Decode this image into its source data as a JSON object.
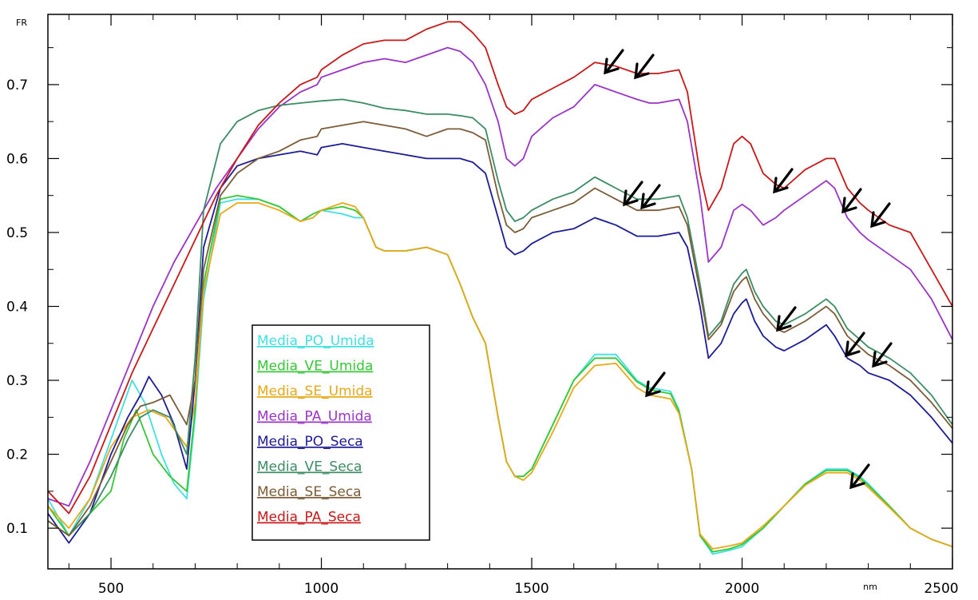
{
  "chart_data": {
    "type": "line",
    "title": "",
    "xlabel": "nm",
    "ylabel": "FR",
    "xlim": [
      350,
      2500
    ],
    "ylim": [
      0.045,
      0.795
    ],
    "xticks": [
      500,
      1000,
      1500,
      2000,
      2500
    ],
    "yticks": [
      0.1,
      0.2,
      0.3,
      0.4,
      0.5,
      0.6,
      0.7
    ],
    "grid": false,
    "legend_position": "lower-left inside plot",
    "series": [
      {
        "name": "Media_PO_Umida",
        "color": "#40e0e0",
        "x": [
          350,
          400,
          450,
          500,
          550,
          580,
          620,
          650,
          680,
          700,
          720,
          760,
          800,
          850,
          900,
          950,
          980,
          1000,
          1050,
          1080,
          1100,
          1130,
          1150,
          1200,
          1250,
          1300,
          1330,
          1360,
          1390,
          1420,
          1440,
          1460,
          1480,
          1500,
          1550,
          1600,
          1650,
          1700,
          1750,
          1780,
          1800,
          1830,
          1850,
          1880,
          1900,
          1930,
          1970,
          2000,
          2050,
          2100,
          2150,
          2200,
          2250,
          2280,
          2300,
          2350,
          2400,
          2450,
          2500
        ],
        "y": [
          0.14,
          0.09,
          0.14,
          0.22,
          0.3,
          0.27,
          0.2,
          0.16,
          0.14,
          0.25,
          0.41,
          0.54,
          0.545,
          0.545,
          0.535,
          0.515,
          0.52,
          0.53,
          0.525,
          0.52,
          0.52,
          0.48,
          0.475,
          0.475,
          0.48,
          0.47,
          0.43,
          0.385,
          0.35,
          0.25,
          0.19,
          0.17,
          0.17,
          0.18,
          0.24,
          0.3,
          0.335,
          0.335,
          0.3,
          0.29,
          0.288,
          0.285,
          0.26,
          0.18,
          0.09,
          0.065,
          0.07,
          0.075,
          0.1,
          0.13,
          0.16,
          0.18,
          0.18,
          0.17,
          0.16,
          0.13,
          0.1,
          0.085,
          0.075
        ]
      },
      {
        "name": "Media_VE_Umida",
        "color": "#34c834",
        "x": [
          350,
          400,
          450,
          500,
          530,
          560,
          600,
          640,
          680,
          700,
          720,
          760,
          800,
          850,
          900,
          950,
          980,
          1000,
          1050,
          1080,
          1100,
          1130,
          1150,
          1200,
          1250,
          1300,
          1330,
          1360,
          1390,
          1420,
          1440,
          1460,
          1480,
          1500,
          1550,
          1600,
          1650,
          1700,
          1750,
          1780,
          1800,
          1830,
          1850,
          1880,
          1900,
          1930,
          1970,
          2000,
          2050,
          2100,
          2150,
          2200,
          2250,
          2280,
          2300,
          2350,
          2400,
          2450,
          2500
        ],
        "y": [
          0.13,
          0.09,
          0.12,
          0.15,
          0.22,
          0.26,
          0.2,
          0.17,
          0.15,
          0.26,
          0.43,
          0.545,
          0.55,
          0.545,
          0.535,
          0.515,
          0.525,
          0.53,
          0.535,
          0.53,
          0.52,
          0.48,
          0.475,
          0.475,
          0.48,
          0.47,
          0.43,
          0.385,
          0.35,
          0.25,
          0.19,
          0.17,
          0.17,
          0.18,
          0.24,
          0.3,
          0.33,
          0.33,
          0.298,
          0.288,
          0.285,
          0.282,
          0.258,
          0.18,
          0.09,
          0.068,
          0.072,
          0.078,
          0.1,
          0.13,
          0.16,
          0.178,
          0.178,
          0.168,
          0.158,
          0.13,
          0.1,
          0.085,
          0.075
        ]
      },
      {
        "name": "Media_SE_Umida",
        "color": "#e8a818",
        "x": [
          350,
          400,
          450,
          500,
          550,
          590,
          630,
          680,
          700,
          720,
          760,
          800,
          850,
          900,
          950,
          980,
          1000,
          1050,
          1080,
          1100,
          1130,
          1150,
          1200,
          1250,
          1300,
          1330,
          1360,
          1390,
          1420,
          1440,
          1460,
          1480,
          1500,
          1550,
          1600,
          1650,
          1700,
          1750,
          1780,
          1800,
          1830,
          1850,
          1880,
          1900,
          1930,
          1970,
          2000,
          2050,
          2100,
          2150,
          2200,
          2250,
          2280,
          2300,
          2350,
          2400,
          2450,
          2500
        ],
        "y": [
          0.13,
          0.1,
          0.14,
          0.21,
          0.25,
          0.26,
          0.25,
          0.21,
          0.27,
          0.42,
          0.525,
          0.54,
          0.54,
          0.53,
          0.515,
          0.52,
          0.53,
          0.54,
          0.535,
          0.52,
          0.48,
          0.475,
          0.475,
          0.48,
          0.47,
          0.43,
          0.385,
          0.35,
          0.25,
          0.19,
          0.17,
          0.165,
          0.175,
          0.23,
          0.29,
          0.32,
          0.323,
          0.29,
          0.28,
          0.278,
          0.275,
          0.255,
          0.18,
          0.092,
          0.072,
          0.076,
          0.08,
          0.103,
          0.13,
          0.158,
          0.175,
          0.175,
          0.165,
          0.155,
          0.128,
          0.1,
          0.085,
          0.075
        ]
      },
      {
        "name": "Media_PA_Umida",
        "color": "#9a34c8",
        "x": [
          350,
          400,
          450,
          500,
          550,
          600,
          650,
          700,
          750,
          800,
          850,
          900,
          950,
          990,
          1000,
          1050,
          1100,
          1150,
          1200,
          1250,
          1300,
          1330,
          1360,
          1390,
          1420,
          1440,
          1460,
          1480,
          1500,
          1550,
          1600,
          1650,
          1700,
          1750,
          1780,
          1800,
          1850,
          1870,
          1900,
          1920,
          1950,
          1980,
          2000,
          2020,
          2050,
          2080,
          2100,
          2150,
          2200,
          2220,
          2250,
          2280,
          2300,
          2350,
          2400,
          2450,
          2500
        ],
        "y": [
          0.14,
          0.13,
          0.19,
          0.26,
          0.33,
          0.4,
          0.46,
          0.51,
          0.56,
          0.6,
          0.64,
          0.67,
          0.69,
          0.7,
          0.71,
          0.72,
          0.73,
          0.735,
          0.73,
          0.74,
          0.75,
          0.745,
          0.73,
          0.7,
          0.65,
          0.6,
          0.59,
          0.6,
          0.63,
          0.655,
          0.67,
          0.7,
          0.69,
          0.68,
          0.675,
          0.675,
          0.68,
          0.65,
          0.55,
          0.46,
          0.48,
          0.53,
          0.538,
          0.53,
          0.51,
          0.52,
          0.53,
          0.55,
          0.57,
          0.56,
          0.52,
          0.5,
          0.49,
          0.47,
          0.45,
          0.41,
          0.355
        ]
      },
      {
        "name": "Media_PO_Seca",
        "color": "#1c1c96",
        "x": [
          350,
          400,
          450,
          500,
          540,
          570,
          590,
          620,
          650,
          680,
          700,
          720,
          760,
          800,
          850,
          900,
          950,
          990,
          1000,
          1050,
          1100,
          1150,
          1200,
          1250,
          1300,
          1330,
          1360,
          1390,
          1420,
          1440,
          1460,
          1480,
          1500,
          1550,
          1600,
          1650,
          1700,
          1750,
          1780,
          1800,
          1850,
          1870,
          1900,
          1920,
          1950,
          1980,
          2000,
          2010,
          2030,
          2050,
          2080,
          2100,
          2150,
          2200,
          2220,
          2250,
          2280,
          2300,
          2350,
          2400,
          2450,
          2500
        ],
        "y": [
          0.12,
          0.08,
          0.12,
          0.2,
          0.25,
          0.28,
          0.305,
          0.28,
          0.24,
          0.18,
          0.3,
          0.48,
          0.56,
          0.59,
          0.6,
          0.605,
          0.61,
          0.605,
          0.615,
          0.62,
          0.615,
          0.61,
          0.605,
          0.6,
          0.6,
          0.6,
          0.595,
          0.58,
          0.52,
          0.48,
          0.47,
          0.475,
          0.485,
          0.5,
          0.505,
          0.52,
          0.51,
          0.495,
          0.495,
          0.495,
          0.5,
          0.48,
          0.4,
          0.33,
          0.35,
          0.39,
          0.405,
          0.41,
          0.38,
          0.36,
          0.345,
          0.34,
          0.355,
          0.375,
          0.36,
          0.33,
          0.32,
          0.31,
          0.3,
          0.28,
          0.25,
          0.215
        ]
      },
      {
        "name": "Media_VE_Seca",
        "color": "#3c8c64",
        "x": [
          350,
          400,
          450,
          500,
          540,
          570,
          600,
          640,
          680,
          700,
          720,
          760,
          800,
          850,
          900,
          950,
          1000,
          1050,
          1100,
          1150,
          1200,
          1250,
          1300,
          1330,
          1360,
          1390,
          1420,
          1440,
          1460,
          1480,
          1500,
          1550,
          1600,
          1650,
          1700,
          1750,
          1780,
          1800,
          1850,
          1870,
          1900,
          1920,
          1950,
          1980,
          2000,
          2010,
          2030,
          2050,
          2080,
          2100,
          2150,
          2200,
          2220,
          2250,
          2280,
          2300,
          2350,
          2400,
          2450,
          2500
        ],
        "y": [
          0.11,
          0.09,
          0.12,
          0.17,
          0.22,
          0.25,
          0.26,
          0.25,
          0.2,
          0.33,
          0.53,
          0.62,
          0.65,
          0.665,
          0.672,
          0.675,
          0.678,
          0.68,
          0.675,
          0.668,
          0.665,
          0.66,
          0.66,
          0.658,
          0.655,
          0.64,
          0.57,
          0.53,
          0.515,
          0.52,
          0.53,
          0.545,
          0.555,
          0.575,
          0.56,
          0.545,
          0.545,
          0.545,
          0.55,
          0.52,
          0.43,
          0.36,
          0.38,
          0.43,
          0.445,
          0.45,
          0.42,
          0.4,
          0.38,
          0.375,
          0.39,
          0.41,
          0.4,
          0.37,
          0.355,
          0.345,
          0.33,
          0.31,
          0.28,
          0.24
        ]
      },
      {
        "name": "Media_SE_Seca",
        "color": "#7c5c38",
        "x": [
          350,
          400,
          450,
          500,
          540,
          570,
          600,
          640,
          680,
          700,
          720,
          760,
          800,
          850,
          900,
          950,
          990,
          1000,
          1050,
          1100,
          1150,
          1200,
          1250,
          1300,
          1330,
          1360,
          1390,
          1420,
          1440,
          1460,
          1480,
          1500,
          1550,
          1600,
          1650,
          1700,
          1750,
          1780,
          1800,
          1850,
          1870,
          1900,
          1920,
          1950,
          1980,
          2000,
          2010,
          2030,
          2050,
          2080,
          2100,
          2150,
          2200,
          2220,
          2250,
          2280,
          2300,
          2350,
          2400,
          2450,
          2500
        ],
        "y": [
          0.11,
          0.09,
          0.13,
          0.19,
          0.24,
          0.265,
          0.27,
          0.28,
          0.24,
          0.3,
          0.45,
          0.55,
          0.58,
          0.6,
          0.61,
          0.625,
          0.63,
          0.64,
          0.645,
          0.65,
          0.645,
          0.64,
          0.63,
          0.64,
          0.64,
          0.635,
          0.625,
          0.55,
          0.51,
          0.5,
          0.505,
          0.52,
          0.53,
          0.54,
          0.56,
          0.545,
          0.53,
          0.53,
          0.53,
          0.535,
          0.51,
          0.42,
          0.355,
          0.375,
          0.42,
          0.435,
          0.44,
          0.41,
          0.39,
          0.37,
          0.365,
          0.38,
          0.4,
          0.39,
          0.36,
          0.345,
          0.335,
          0.32,
          0.3,
          0.27,
          0.235
        ]
      },
      {
        "name": "Media_PA_Seca",
        "color": "#c81818",
        "x": [
          350,
          400,
          450,
          500,
          550,
          600,
          650,
          700,
          750,
          800,
          850,
          900,
          950,
          990,
          1000,
          1050,
          1100,
          1150,
          1200,
          1250,
          1300,
          1330,
          1360,
          1390,
          1420,
          1440,
          1460,
          1480,
          1500,
          1550,
          1600,
          1650,
          1700,
          1750,
          1780,
          1800,
          1850,
          1870,
          1900,
          1920,
          1950,
          1980,
          2000,
          2020,
          2050,
          2080,
          2100,
          2150,
          2200,
          2220,
          2250,
          2280,
          2300,
          2350,
          2400,
          2450,
          2500
        ],
        "y": [
          0.15,
          0.12,
          0.17,
          0.24,
          0.31,
          0.37,
          0.43,
          0.49,
          0.55,
          0.6,
          0.645,
          0.675,
          0.7,
          0.71,
          0.72,
          0.74,
          0.755,
          0.76,
          0.76,
          0.775,
          0.785,
          0.785,
          0.77,
          0.75,
          0.7,
          0.67,
          0.66,
          0.665,
          0.68,
          0.695,
          0.71,
          0.73,
          0.725,
          0.715,
          0.715,
          0.715,
          0.72,
          0.69,
          0.58,
          0.53,
          0.56,
          0.62,
          0.63,
          0.62,
          0.58,
          0.565,
          0.56,
          0.585,
          0.6,
          0.6,
          0.56,
          0.54,
          0.53,
          0.51,
          0.5,
          0.45,
          0.4
        ]
      }
    ]
  }
}
